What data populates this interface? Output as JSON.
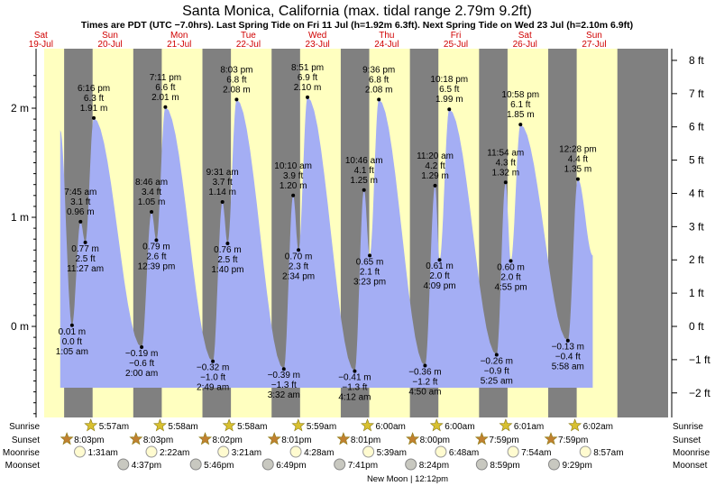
{
  "title": "Santa Monica, California (max. tidal range 2.79m 9.2ft)",
  "subtitle": "Times are PDT (UTC −7.0hrs). Last Spring Tide on Fri 11 Jul (h=1.92m 6.3ft). Next Spring Tide on Wed 23 Jul (h=2.10m 6.9ft)",
  "colors": {
    "day": "#ffffc0",
    "night": "#808080",
    "water": "#a4aef4",
    "title_red": "#d00000"
  },
  "chart_data": {
    "type": "area",
    "ylabel_left_unit": "m",
    "ylabel_right_unit": "ft",
    "ylim_m": [
      -0.83,
      2.5
    ],
    "left_ticks": [
      "2 m",
      "1 m",
      "0 m"
    ],
    "right_ticks": [
      "8 ft",
      "7 ft",
      "6 ft",
      "5 ft",
      "4 ft",
      "3 ft",
      "2 ft",
      "1 ft",
      "0 ft",
      "−1 ft",
      "−2 ft"
    ],
    "days": [
      {
        "weekday": "Sat",
        "date": "19-Jul"
      },
      {
        "weekday": "Sun",
        "date": "20-Jul"
      },
      {
        "weekday": "Mon",
        "date": "21-Jul"
      },
      {
        "weekday": "Tue",
        "date": "22-Jul"
      },
      {
        "weekday": "Wed",
        "date": "23-Jul"
      },
      {
        "weekday": "Thu",
        "date": "24-Jul"
      },
      {
        "weekday": "Fri",
        "date": "25-Jul"
      },
      {
        "weekday": "Sat",
        "date": "26-Jul"
      },
      {
        "weekday": "Sun",
        "date": "27-Jul"
      }
    ],
    "tides": [
      {
        "time": "1:05 am",
        "h_m": "0.01 m",
        "h_ft": "0.0 ft",
        "value": 0.01,
        "t": 0.95
      },
      {
        "time": "7:45 am",
        "h_m": "0.96 m",
        "h_ft": "3.1 ft",
        "value": 0.96,
        "t": 1.073
      },
      {
        "time": "11:27 am",
        "h_m": "0.77 m",
        "h_ft": "2.5 ft",
        "value": 0.77,
        "t": 1.142
      },
      {
        "time": "6:16 pm",
        "h_m": "1.91 m",
        "h_ft": "6.3 ft",
        "value": 1.91,
        "t": 1.265
      },
      {
        "time": "2:00 am",
        "h_m": "−0.19 m",
        "h_ft": "−0.6 ft",
        "value": -0.19,
        "t": 1.957
      },
      {
        "time": "8:46 am",
        "h_m": "1.05 m",
        "h_ft": "3.4 ft",
        "value": 1.05,
        "t": 2.1
      },
      {
        "time": "12:39 pm",
        "h_m": "0.79 m",
        "h_ft": "2.6 ft",
        "value": 0.79,
        "t": 2.17
      },
      {
        "time": "7:11 pm",
        "h_m": "2.01 m",
        "h_ft": "6.6 ft",
        "value": 2.01,
        "t": 2.3
      },
      {
        "time": "2:49 am",
        "h_m": "−0.32 m",
        "h_ft": "−1.0 ft",
        "value": -0.32,
        "t": 2.987
      },
      {
        "time": "9:31 am",
        "h_m": "1.14 m",
        "h_ft": "3.7 ft",
        "value": 1.14,
        "t": 3.125
      },
      {
        "time": "1:40 pm",
        "h_m": "0.76 m",
        "h_ft": "2.5 ft",
        "value": 0.76,
        "t": 3.2
      },
      {
        "time": "8:03 pm",
        "h_m": "2.08 m",
        "h_ft": "6.8 ft",
        "value": 2.08,
        "t": 3.33
      },
      {
        "time": "3:32 am",
        "h_m": "−0.39 m",
        "h_ft": "−1.3 ft",
        "value": -0.39,
        "t": 4.013
      },
      {
        "time": "10:10 am",
        "h_m": "1.20 m",
        "h_ft": "3.9 ft",
        "value": 1.2,
        "t": 4.148
      },
      {
        "time": "2:34 pm",
        "h_m": "0.70 m",
        "h_ft": "2.3 ft",
        "value": 0.7,
        "t": 4.225
      },
      {
        "time": "8:51 pm",
        "h_m": "2.10 m",
        "h_ft": "6.9 ft",
        "value": 2.1,
        "t": 4.355
      },
      {
        "time": "4:12 am",
        "h_m": "−0.41 m",
        "h_ft": "−1.3 ft",
        "value": -0.41,
        "t": 5.038
      },
      {
        "time": "10:46 am",
        "h_m": "1.25 m",
        "h_ft": "4.1 ft",
        "value": 1.25,
        "t": 5.172
      },
      {
        "time": "3:23 pm",
        "h_m": "0.65 m",
        "h_ft": "2.1 ft",
        "value": 0.65,
        "t": 5.255
      },
      {
        "time": "9:36 pm",
        "h_m": "2.08 m",
        "h_ft": "6.8 ft",
        "value": 2.08,
        "t": 5.387
      },
      {
        "time": "4:50 am",
        "h_m": "−0.36 m",
        "h_ft": "−1.2 ft",
        "value": -0.36,
        "t": 6.055
      },
      {
        "time": "11:20 am",
        "h_m": "1.29 m",
        "h_ft": "4.2 ft",
        "value": 1.29,
        "t": 6.2
      },
      {
        "time": "4:09 pm",
        "h_m": "0.61 m",
        "h_ft": "2.0 ft",
        "value": 0.61,
        "t": 6.265
      },
      {
        "time": "10:18 pm",
        "h_m": "1.99 m",
        "h_ft": "6.5 ft",
        "value": 1.99,
        "t": 6.405
      },
      {
        "time": "5:25 am",
        "h_m": "−0.26 m",
        "h_ft": "−0.9 ft",
        "value": -0.26,
        "t": 7.09
      },
      {
        "time": "11:54 am",
        "h_m": "1.32 m",
        "h_ft": "4.3 ft",
        "value": 1.32,
        "t": 7.22
      },
      {
        "time": "4:55 pm",
        "h_m": "0.60 m",
        "h_ft": "2.0 ft",
        "value": 0.6,
        "t": 7.295
      },
      {
        "time": "10:58 pm",
        "h_m": "1.85 m",
        "h_ft": "6.1 ft",
        "value": 1.85,
        "t": 7.435
      },
      {
        "time": "5:58 am",
        "h_m": "−0.13 m",
        "h_ft": "−0.4 ft",
        "value": -0.13,
        "t": 8.12
      },
      {
        "time": "12:28 pm",
        "h_m": "1.35 m",
        "h_ft": "4.4 ft",
        "value": 1.35,
        "t": 8.265
      }
    ],
    "sun_moon": {
      "row_labels": [
        "Sunrise",
        "Sunset",
        "Moonrise",
        "Moonset"
      ],
      "sunrise": [
        "5:57am",
        "5:58am",
        "5:58am",
        "5:59am",
        "6:00am",
        "6:00am",
        "6:01am",
        "6:02am"
      ],
      "sunset": [
        "8:03pm",
        "8:03pm",
        "8:02pm",
        "8:01pm",
        "8:01pm",
        "8:00pm",
        "7:59pm",
        "7:59pm"
      ],
      "moonrise": [
        "1:31am",
        "2:22am",
        "3:21am",
        "4:28am",
        "5:39am",
        "6:48am",
        "7:54am",
        "8:57am"
      ],
      "moonset": [
        "4:37pm",
        "5:46pm",
        "6:49pm",
        "7:41pm",
        "8:24pm",
        "8:59pm",
        "9:29pm"
      ],
      "moon_phase_note": "New Moon | 12:12pm"
    }
  }
}
